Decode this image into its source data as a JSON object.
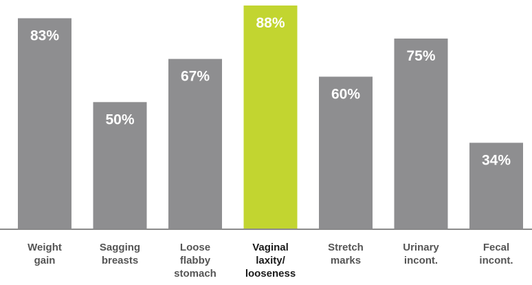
{
  "chart_data": {
    "type": "bar",
    "title": "",
    "xlabel": "",
    "ylabel": "",
    "ylim": [
      0,
      100
    ],
    "grid": false,
    "legend": "none",
    "categories": [
      [
        "Weight",
        "gain"
      ],
      [
        "Sagging",
        "breasts"
      ],
      [
        "Loose",
        "flabby",
        "stomach"
      ],
      [
        "Vaginal",
        "laxity/",
        "looseness"
      ],
      [
        "Stretch",
        "marks"
      ],
      [
        "Urinary",
        "incont."
      ],
      [
        "Fecal",
        "incont."
      ]
    ],
    "values": [
      83,
      50,
      67,
      88,
      60,
      75,
      34
    ],
    "value_labels": [
      "83%",
      "50%",
      "67%",
      "88%",
      "60%",
      "75%",
      "34%"
    ],
    "highlight_index": 3
  },
  "colors": {
    "bar": "#8e8e90",
    "highlight_bar": "#c2d530",
    "axis": "#8a8a8a",
    "label": "#555555",
    "highlight_label": "#1a1a1a",
    "value_text": "#ffffff"
  }
}
